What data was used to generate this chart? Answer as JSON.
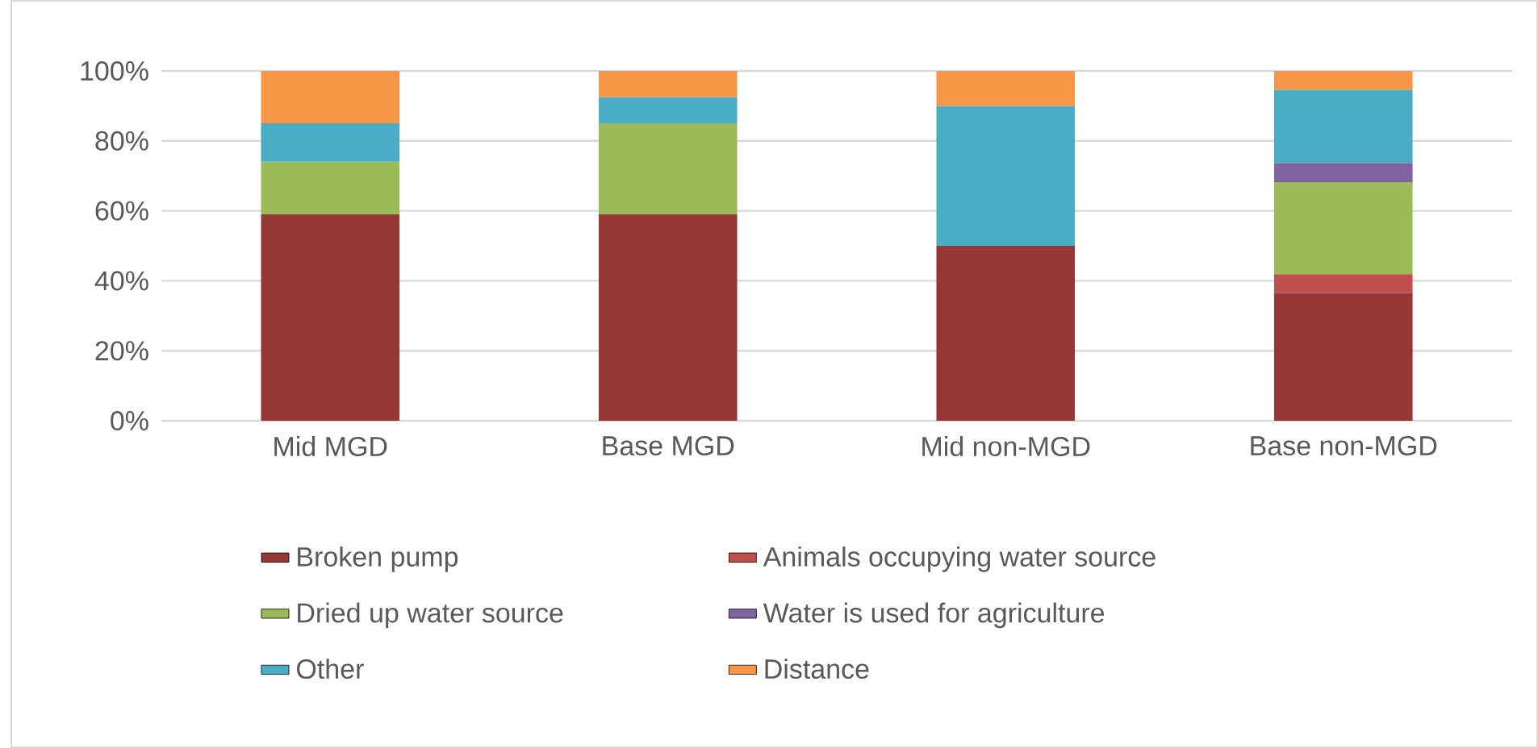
{
  "chart_data": {
    "type": "bar",
    "stacked": true,
    "categories": [
      "Mid MGD",
      "Base MGD",
      "Mid non-MGD",
      "Base non-MGD"
    ],
    "series": [
      {
        "name": "Broken pump",
        "color": "#953735",
        "values": [
          59,
          59,
          50,
          36.5
        ]
      },
      {
        "name": "Animals occupying water source",
        "color": "#c0504d",
        "values": [
          0,
          0,
          0,
          5.4
        ]
      },
      {
        "name": "Dried up water source",
        "color": "#9bbb59",
        "values": [
          15,
          26,
          0,
          26.3
        ]
      },
      {
        "name": "Water is used for agriculture",
        "color": "#8064a2",
        "values": [
          0,
          0,
          0,
          5.5
        ]
      },
      {
        "name": "Other",
        "color": "#4bacc6",
        "values": [
          11,
          7.5,
          40,
          20.9
        ]
      },
      {
        "name": "Distance",
        "color": "#f79646",
        "values": [
          15,
          7.5,
          10,
          5.4
        ]
      }
    ],
    "ylim": [
      0,
      100
    ],
    "yticks": [
      {
        "value": 0,
        "label": "0%"
      },
      {
        "value": 20,
        "label": "20%"
      },
      {
        "value": 40,
        "label": "40%"
      },
      {
        "value": 60,
        "label": "60%"
      },
      {
        "value": 80,
        "label": "80%"
      },
      {
        "value": 100,
        "label": "100%"
      }
    ],
    "grid": "y",
    "legend": "bottom"
  }
}
